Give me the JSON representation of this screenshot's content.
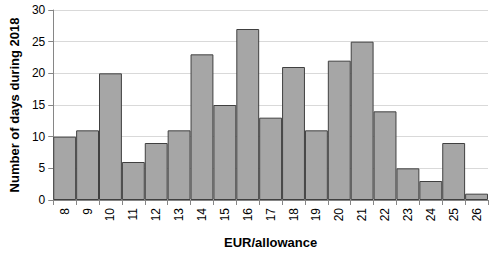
{
  "chart_data": {
    "type": "bar",
    "x_label": "EUR/allowance",
    "y_label": "Number of days during 2018",
    "categories": [
      "8",
      "9",
      "10",
      "11",
      "12",
      "13",
      "14",
      "15",
      "16",
      "17",
      "18",
      "19",
      "20",
      "21",
      "22",
      "23",
      "24",
      "25",
      "26"
    ],
    "values": [
      10,
      11,
      20,
      6,
      9,
      11,
      23,
      15,
      27,
      13,
      21,
      11,
      22,
      25,
      14,
      5,
      3,
      9,
      1
    ],
    "color": "#a6a6a6",
    "ylim": [
      0,
      30
    ],
    "yticks": [
      0,
      5,
      10,
      15,
      20,
      25,
      30
    ],
    "grid": true
  }
}
